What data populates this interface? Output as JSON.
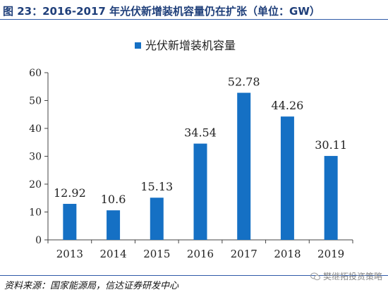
{
  "header": {
    "figure_title": "图 23：2016-2017 年光伏新增装机容量仍在扩张（单位：GW）"
  },
  "footer": {
    "source": "资料来源：国家能源局，信达证券研发中心",
    "watermark": "樊继拓投资策略",
    "watermark_icon": "wechat-icon"
  },
  "colors": {
    "bar": "#1570c4",
    "title": "#1f3f7a",
    "rule": "#2f5aa8"
  },
  "chart_data": {
    "type": "bar",
    "categories": [
      "2013",
      "2014",
      "2015",
      "2016",
      "2017",
      "2018",
      "2019"
    ],
    "series": [
      {
        "name": "光伏新增装机容量",
        "values": [
          12.92,
          10.6,
          15.13,
          34.54,
          52.78,
          44.26,
          30.11
        ]
      }
    ],
    "data_labels": [
      "12.92",
      "10.6",
      "15.13",
      "34.54",
      "52.78",
      "44.26",
      "30.11"
    ],
    "ylim": [
      0,
      60
    ],
    "yticks": [
      0,
      10,
      20,
      30,
      40,
      50,
      60
    ],
    "grid": false,
    "legend": "top"
  }
}
